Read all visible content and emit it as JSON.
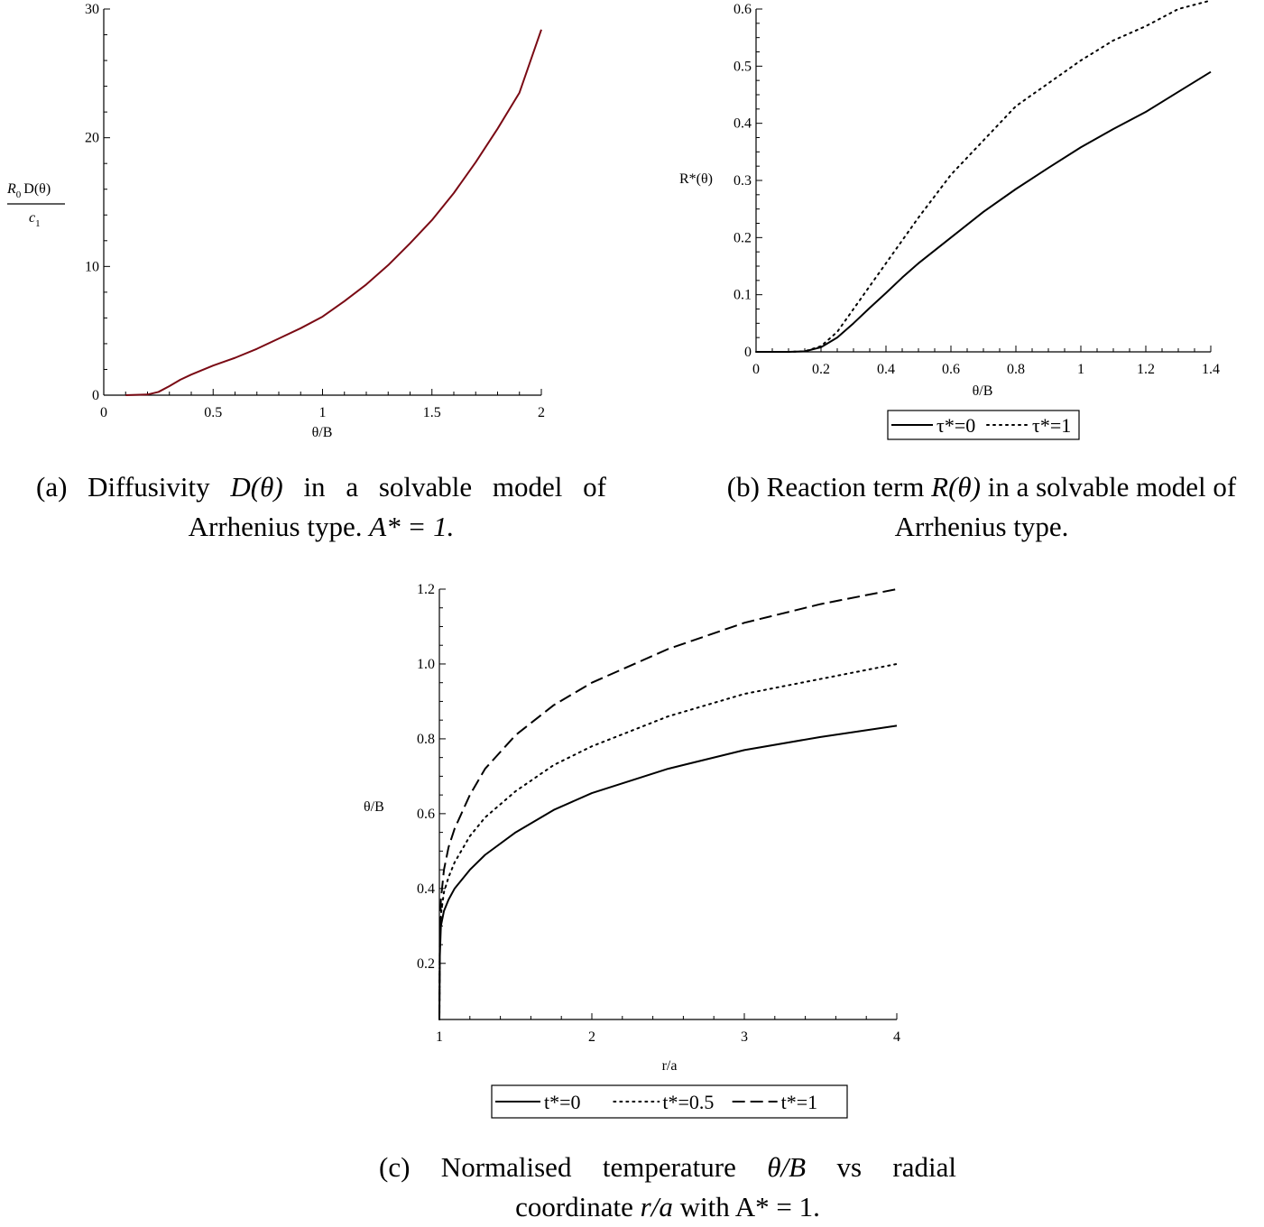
{
  "captions": {
    "a": {
      "line1_pre": "(a) Diffusivity ",
      "line1_math": "D(θ)",
      "line1_post": " in a solvable model of",
      "line2_pre": "Arrhenius type. ",
      "line2_math": "A* = 1."
    },
    "b": {
      "line1_pre": "(b) Reaction term ",
      "line1_math": "R(θ)",
      "line1_post": " in a solvable model of",
      "line2_pre": "Arrhenius type.",
      "line2_math": ""
    },
    "c": {
      "line1_pre": "(c) Normalised temperature ",
      "line1_math": "θ/B",
      "line1_post": " vs radial",
      "line2_pre": "coordinate ",
      "line2_math": "r/a",
      "line2_post": " with A* = 1."
    }
  },
  "chart_data": [
    {
      "id": "a",
      "type": "line",
      "xlabel": "θ/B",
      "ylabel": {
        "numerator_italic": "R",
        "numerator_sub": "0",
        "numerator_rest": "D(θ)",
        "denominator_italic": "c",
        "denominator_sub": "1"
      },
      "xlim": [
        0,
        2
      ],
      "ylim": [
        0,
        30
      ],
      "xticks": [
        0,
        0.5,
        1,
        1.5,
        2
      ],
      "xtick_labels": [
        "0",
        "0.5",
        "1",
        "1.5",
        "2"
      ],
      "yticks": [
        0,
        10,
        20,
        30
      ],
      "ytick_labels": [
        "0",
        "10",
        "20",
        "30"
      ],
      "grid": false,
      "series": [
        {
          "color": "#7a0a14",
          "style": "solid",
          "x": [
            0.1,
            0.2,
            0.25,
            0.3,
            0.35,
            0.4,
            0.5,
            0.6,
            0.7,
            0.8,
            0.9,
            1.0,
            1.1,
            1.2,
            1.3,
            1.4,
            1.5,
            1.6,
            1.7,
            1.8,
            1.9,
            2.0
          ],
          "y": [
            0.0,
            0.05,
            0.25,
            0.7,
            1.2,
            1.6,
            2.3,
            2.9,
            3.6,
            4.4,
            5.2,
            6.1,
            7.3,
            8.6,
            10.1,
            11.8,
            13.6,
            15.7,
            18.1,
            20.7,
            23.5,
            28.4
          ]
        }
      ]
    },
    {
      "id": "b",
      "type": "line",
      "xlabel": "θ/B",
      "ylabel": "R*(θ)",
      "xlim": [
        0,
        1.4
      ],
      "ylim": [
        0,
        0.6
      ],
      "xticks": [
        0,
        0.2,
        0.4,
        0.6,
        0.8,
        1.0,
        1.2,
        1.4
      ],
      "xtick_labels": [
        "0",
        "0.2",
        "0.4",
        "0.6",
        "0.8",
        "1",
        "1.2",
        "1.4"
      ],
      "yticks": [
        0,
        0.1,
        0.2,
        0.3,
        0.4,
        0.5,
        0.6
      ],
      "ytick_labels": [
        "0",
        "0.1",
        "0.2",
        "0.3",
        "0.4",
        "0.5",
        "0.6"
      ],
      "grid": false,
      "legend": "bottom",
      "series": [
        {
          "name": "τ*=0",
          "color": "#000000",
          "style": "solid",
          "x": [
            0,
            0.1,
            0.15,
            0.2,
            0.25,
            0.3,
            0.35,
            0.4,
            0.45,
            0.5,
            0.6,
            0.7,
            0.8,
            0.9,
            1.0,
            1.1,
            1.2,
            1.3,
            1.4
          ],
          "y": [
            0,
            0.0,
            0.001,
            0.008,
            0.025,
            0.05,
            0.077,
            0.103,
            0.13,
            0.155,
            0.2,
            0.245,
            0.285,
            0.322,
            0.358,
            0.39,
            0.42,
            0.455,
            0.49
          ]
        },
        {
          "name": "τ*=1",
          "color": "#000000",
          "style": "dotted",
          "x": [
            0,
            0.1,
            0.15,
            0.2,
            0.25,
            0.3,
            0.35,
            0.4,
            0.45,
            0.5,
            0.6,
            0.7,
            0.8,
            0.9,
            1.0,
            1.1,
            1.2,
            1.3,
            1.4
          ],
          "y": [
            0,
            0.0,
            0.001,
            0.01,
            0.035,
            0.075,
            0.115,
            0.155,
            0.195,
            0.235,
            0.31,
            0.37,
            0.43,
            0.47,
            0.51,
            0.545,
            0.57,
            0.6,
            0.615
          ]
        }
      ]
    },
    {
      "id": "c",
      "type": "line",
      "xlabel": "r/a",
      "ylabel": "θ/B",
      "xlim": [
        1,
        4
      ],
      "ylim": [
        0.05,
        1.2
      ],
      "xticks": [
        1,
        2,
        3,
        4
      ],
      "xtick_labels": [
        "1",
        "2",
        "3",
        "4"
      ],
      "yticks": [
        0.2,
        0.4,
        0.6,
        0.8,
        1.0,
        1.2
      ],
      "ytick_labels": [
        "0.2",
        "0.4",
        "0.6",
        "0.8",
        "1.0",
        "1.2"
      ],
      "grid": false,
      "legend": "bottom",
      "series": [
        {
          "name": "t*=0",
          "color": "#000000",
          "style": "solid",
          "x": [
            1.0,
            1.003,
            1.01,
            1.03,
            1.06,
            1.1,
            1.2,
            1.3,
            1.5,
            1.75,
            2.0,
            2.5,
            3.0,
            3.5,
            4.0
          ],
          "y": [
            0.05,
            0.22,
            0.3,
            0.34,
            0.37,
            0.4,
            0.45,
            0.49,
            0.55,
            0.61,
            0.655,
            0.72,
            0.77,
            0.805,
            0.835
          ]
        },
        {
          "name": "t*=0.5",
          "color": "#000000",
          "style": "dotted",
          "x": [
            1.0,
            1.003,
            1.01,
            1.03,
            1.06,
            1.1,
            1.2,
            1.3,
            1.5,
            1.75,
            2.0,
            2.5,
            3.0,
            3.5,
            4.0
          ],
          "y": [
            0.05,
            0.24,
            0.33,
            0.39,
            0.43,
            0.47,
            0.54,
            0.59,
            0.66,
            0.73,
            0.78,
            0.86,
            0.92,
            0.96,
            1.0
          ]
        },
        {
          "name": "t*=1",
          "color": "#000000",
          "style": "dashed",
          "x": [
            1.0,
            1.003,
            1.01,
            1.03,
            1.06,
            1.1,
            1.2,
            1.3,
            1.5,
            1.75,
            2.0,
            2.5,
            3.0,
            3.5,
            4.0
          ],
          "y": [
            0.05,
            0.26,
            0.37,
            0.45,
            0.51,
            0.56,
            0.65,
            0.72,
            0.81,
            0.89,
            0.95,
            1.04,
            1.11,
            1.16,
            1.2
          ]
        }
      ]
    }
  ]
}
